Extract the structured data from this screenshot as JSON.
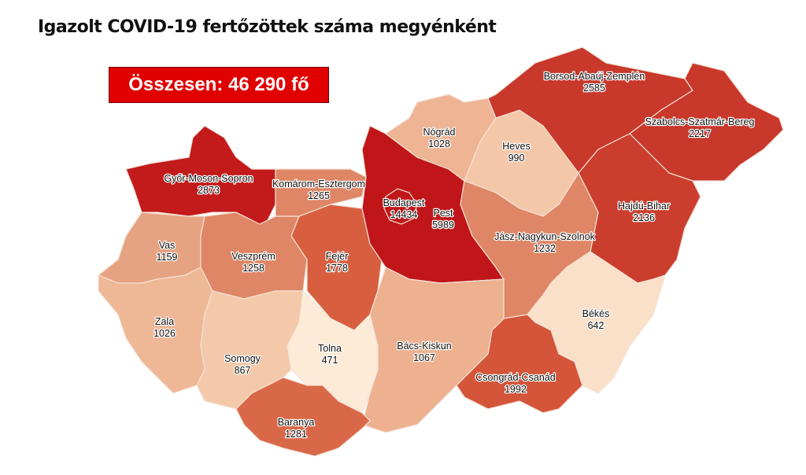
{
  "title": "Igazolt COVID-19 fertőzöttek száma megyénként",
  "total_label": "Összesen: 46 290 fő",
  "counties": {
    "gyor": {
      "name": "Győr-Moson-Sopron",
      "value": "2873",
      "color": "#c31a1c"
    },
    "komarom": {
      "name": "Komárom-Esztergom",
      "value": "1265",
      "color": "#de8665"
    },
    "vas": {
      "name": "Vas",
      "value": "1159",
      "color": "#e6a381"
    },
    "veszprem": {
      "name": "Veszprém",
      "value": "1258",
      "color": "#de8665"
    },
    "fejer": {
      "name": "Fejér",
      "value": "1778",
      "color": "#d75f40"
    },
    "budapest": {
      "name": "Budapest",
      "value": "14434",
      "color": "#c0161a"
    },
    "pest": {
      "name": "Pest",
      "value": "5989",
      "color": "#c0161a"
    },
    "nograd": {
      "name": "Nógrád",
      "value": "1028",
      "color": "#eeb493"
    },
    "heves": {
      "name": "Heves",
      "value": "990",
      "color": "#f3c7a8"
    },
    "borsod": {
      "name": "Borsod-Abaúj-Zemplén",
      "value": "2585",
      "color": "#c8382b"
    },
    "szabolcs": {
      "name": "Szabolcs-Szatmár-Bereg",
      "value": "2217",
      "color": "#c8382b"
    },
    "hajdu": {
      "name": "Hajdú-Bihar",
      "value": "2136",
      "color": "#cb3e2d"
    },
    "jasz": {
      "name": "Jász-Nagykun-Szolnok",
      "value": "1232",
      "color": "#de8665"
    },
    "bekes": {
      "name": "Békés",
      "value": "642",
      "color": "#fbe0c9"
    },
    "csongrad": {
      "name": "Csongrád-Csanád",
      "value": "1992",
      "color": "#d4553a"
    },
    "bacs": {
      "name": "Bács-Kiskun",
      "value": "1067",
      "color": "#edb190"
    },
    "tolna": {
      "name": "Tolna",
      "value": "471",
      "color": "#fdebd8"
    },
    "zala": {
      "name": "Zala",
      "value": "1026",
      "color": "#eeb796"
    },
    "somogy": {
      "name": "Somogy",
      "value": "867",
      "color": "#f3c9aa"
    },
    "baranya": {
      "name": "Baranya",
      "value": "1281",
      "color": "#d96848"
    }
  }
}
